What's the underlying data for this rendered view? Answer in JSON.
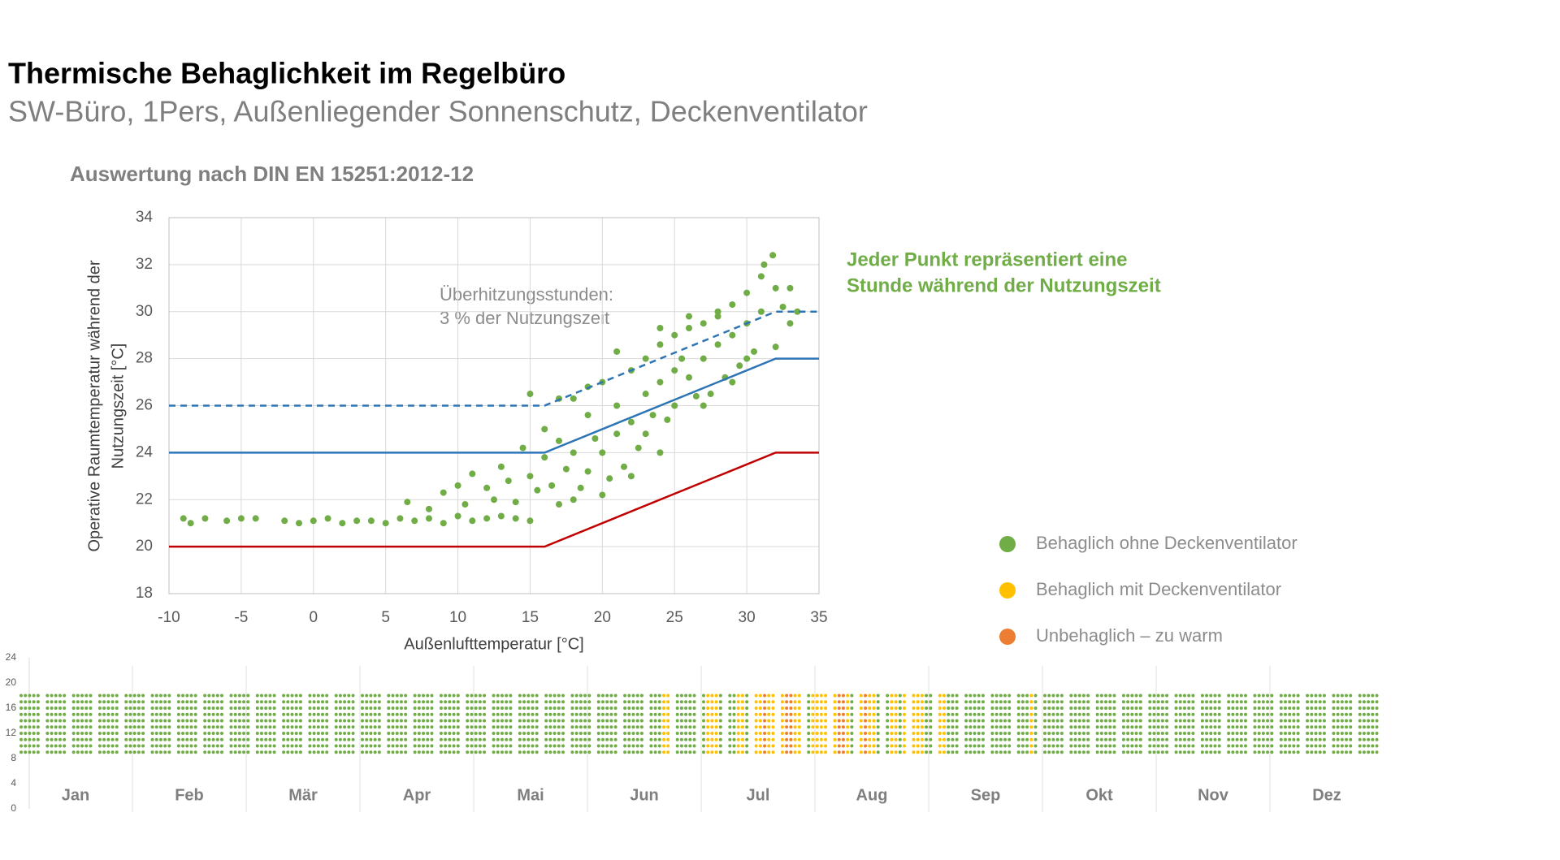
{
  "header": {
    "title": "Thermische Behaglichkeit im Regelbüro",
    "subtitle": "SW-Büro, 1Pers, Außenliegender Sonnenschutz, Deckenventilator"
  },
  "chart_data": [
    {
      "type": "scatter",
      "title": "Auswertung nach DIN EN 15251:2012-12",
      "xlabel": "Außenlufttemperatur  [°C]",
      "ylabel": [
        "Operative Raumtemperatur während der",
        "Nutzungszeit [°C]"
      ],
      "annotation": [
        "Überhitzungsstunden:",
        "3 % der Nutzungszeit"
      ],
      "note": [
        "Jeder Punkt repräsentiert eine",
        "Stunde während der Nutzungszeit"
      ],
      "xlim": [
        -10,
        35
      ],
      "xticks": [
        -10,
        -5,
        0,
        5,
        10,
        15,
        20,
        25,
        30,
        35
      ],
      "ylim": [
        18,
        34
      ],
      "yticks": [
        18,
        20,
        22,
        24,
        26,
        28,
        30,
        32,
        34
      ],
      "grid": true,
      "color": "#70ad47",
      "x": [
        -9,
        -8.5,
        -7.5,
        -6,
        -5,
        -4,
        -2,
        -1,
        0,
        1,
        2,
        3,
        4,
        5,
        6,
        7,
        8,
        9,
        10,
        11,
        12,
        13,
        14,
        15,
        6.5,
        8,
        9,
        10,
        10.5,
        11,
        12,
        12.5,
        13,
        13.5,
        14,
        14.5,
        15,
        15.5,
        16,
        16,
        16.5,
        17,
        17,
        17.5,
        18,
        18,
        18.5,
        19,
        19,
        19.5,
        20,
        20,
        20.5,
        21,
        21,
        21.5,
        22,
        22,
        22.5,
        23,
        23,
        23,
        23.5,
        24,
        24,
        24.5,
        25,
        25,
        25,
        25.5,
        26,
        26,
        26.5,
        27,
        27,
        27.5,
        28,
        28,
        28.5,
        29,
        29,
        29.5,
        30,
        30,
        30.5,
        31,
        31,
        31.2,
        31.8,
        32,
        32.5,
        33,
        33.5,
        32,
        26,
        24,
        21,
        19,
        17,
        15,
        28,
        30,
        27,
        22,
        20,
        18,
        24,
        29,
        33
      ],
      "y": [
        21.2,
        21,
        21.2,
        21.1,
        21.2,
        21.2,
        21.1,
        21,
        21.1,
        21.2,
        21,
        21.1,
        21.1,
        21,
        21.2,
        21.1,
        21.2,
        21,
        21.3,
        21.1,
        21.2,
        21.3,
        21.2,
        21.1,
        21.9,
        21.6,
        22.3,
        22.6,
        21.8,
        23.1,
        22.5,
        22,
        23.4,
        22.8,
        21.9,
        24.2,
        23,
        22.4,
        25,
        23.8,
        22.6,
        24.5,
        21.8,
        23.3,
        26.3,
        24,
        22.5,
        25.6,
        23.2,
        24.6,
        27,
        24,
        22.9,
        26,
        24.8,
        23.4,
        27.5,
        25.3,
        24.2,
        28,
        26.5,
        24.8,
        25.6,
        28.6,
        27,
        25.4,
        29,
        27.5,
        26,
        28,
        29.3,
        27.2,
        26.4,
        29.5,
        28,
        26.5,
        30,
        28.6,
        27.2,
        30.3,
        29,
        27.7,
        30.8,
        29.5,
        28.3,
        31.5,
        30,
        32,
        32.4,
        31,
        30.2,
        29.5,
        30,
        28.5,
        29.8,
        29.3,
        28.3,
        26.8,
        26.3,
        26.5,
        29.8,
        28,
        26,
        23,
        22.2,
        22,
        24,
        27,
        31
      ],
      "lines": [
        {
          "color": "#2e75b6",
          "dash": true,
          "x": [
            -10,
            16,
            32,
            35
          ],
          "y": [
            26,
            26,
            30,
            30
          ]
        },
        {
          "color": "#2e75b6",
          "dash": false,
          "x": [
            -10,
            16,
            32,
            35
          ],
          "y": [
            24,
            24,
            28,
            28
          ]
        },
        {
          "color": "#c00000",
          "dash": false,
          "x": [
            -10,
            16,
            32,
            35
          ],
          "y": [
            20,
            20,
            24,
            24
          ]
        }
      ]
    },
    {
      "type": "heatmap",
      "categories": [
        "Jan",
        "Feb",
        "Mär",
        "Apr",
        "Mai",
        "Jun",
        "Jul",
        "Aug",
        "Sep",
        "Okt",
        "Nov",
        "Dez"
      ],
      "ylim": [
        0,
        24
      ],
      "yticks": [
        0,
        4,
        8,
        12,
        16,
        20,
        24
      ],
      "hours": [
        9,
        10,
        11,
        12,
        13,
        14,
        15,
        16,
        17,
        18
      ],
      "series": [
        {
          "name": "Behaglich ohne Deckenventilator",
          "color": "#70ad47"
        },
        {
          "name": "Behaglich mit Deckenventilator",
          "color": "#ffc000"
        },
        {
          "name": "Unbehaglich – zu warm",
          "color": "#ed7d31"
        }
      ],
      "weeks": [
        [
          0,
          0,
          0,
          0,
          0
        ],
        [
          0,
          0,
          0,
          0,
          0
        ],
        [
          0,
          0,
          0,
          0,
          0
        ],
        [
          0,
          0,
          0,
          0,
          0
        ],
        [
          0,
          0,
          0,
          0,
          0
        ],
        [
          0,
          0,
          0,
          0,
          0
        ],
        [
          0,
          0,
          0,
          0,
          0
        ],
        [
          0,
          0,
          0,
          0,
          0
        ],
        [
          0,
          0,
          0,
          0,
          0
        ],
        [
          0,
          0,
          0,
          0,
          0
        ],
        [
          0,
          0,
          0,
          0,
          0
        ],
        [
          0,
          0,
          0,
          0,
          0
        ],
        [
          0,
          0,
          0,
          0,
          0
        ],
        [
          0,
          0,
          0,
          0,
          0
        ],
        [
          0,
          0,
          0,
          0,
          0
        ],
        [
          0,
          0,
          0,
          0,
          0
        ],
        [
          0,
          0,
          0,
          0,
          0
        ],
        [
          0,
          0,
          0,
          0,
          0
        ],
        [
          0,
          0,
          0,
          0,
          0
        ],
        [
          0,
          0,
          0,
          0,
          0
        ],
        [
          0,
          0,
          0,
          0,
          0
        ],
        [
          0,
          0,
          0,
          0,
          0
        ],
        [
          0,
          0,
          0,
          0,
          0
        ],
        [
          0,
          0,
          0,
          0,
          0
        ],
        [
          0,
          0,
          0,
          1,
          1
        ],
        [
          0,
          0,
          0,
          0,
          0
        ],
        [
          0,
          1,
          1,
          1,
          0
        ],
        [
          0,
          0,
          1,
          1,
          0
        ],
        [
          1,
          1,
          2,
          1,
          1
        ],
        [
          1,
          2,
          2,
          1,
          1
        ],
        [
          0,
          1,
          1,
          1,
          1
        ],
        [
          1,
          2,
          2,
          1,
          0
        ],
        [
          1,
          2,
          1,
          1,
          0
        ],
        [
          0,
          1,
          1,
          0,
          1
        ],
        [
          1,
          1,
          1,
          0,
          0
        ],
        [
          1,
          1,
          0,
          0,
          0
        ],
        [
          0,
          0,
          0,
          0,
          0
        ],
        [
          0,
          0,
          0,
          0,
          0
        ],
        [
          0,
          0,
          0,
          1,
          0
        ],
        [
          0,
          0,
          0,
          0,
          0
        ],
        [
          0,
          0,
          0,
          0,
          0
        ],
        [
          0,
          0,
          0,
          0,
          0
        ],
        [
          0,
          0,
          0,
          0,
          0
        ],
        [
          0,
          0,
          0,
          0,
          0
        ],
        [
          0,
          0,
          0,
          0,
          0
        ],
        [
          0,
          0,
          0,
          0,
          0
        ],
        [
          0,
          0,
          0,
          0,
          0
        ],
        [
          0,
          0,
          0,
          0,
          0
        ],
        [
          0,
          0,
          0,
          0,
          0
        ],
        [
          0,
          0,
          0,
          0,
          0
        ],
        [
          0,
          0,
          0,
          0,
          0
        ],
        [
          0,
          0,
          0,
          0,
          0
        ]
      ]
    }
  ]
}
